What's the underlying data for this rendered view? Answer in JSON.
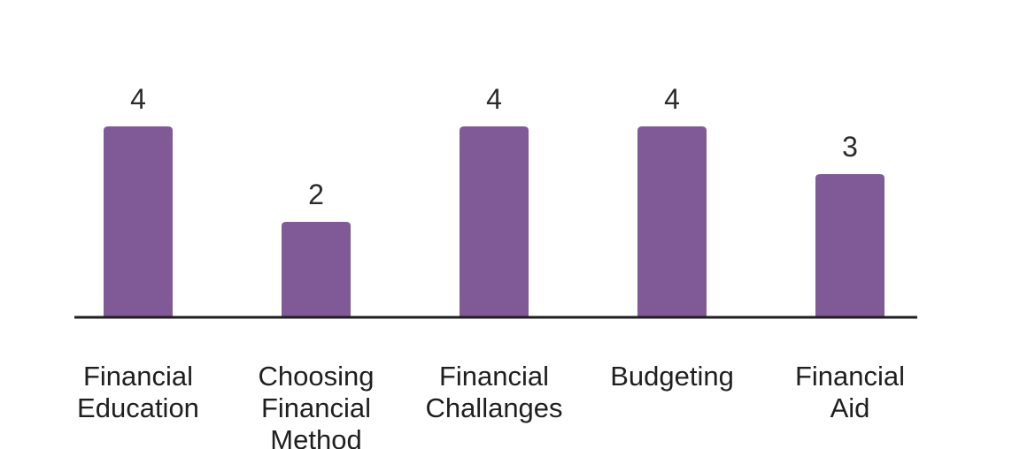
{
  "chart_data": {
    "type": "bar",
    "categories": [
      [
        "Financial",
        "Education"
      ],
      [
        "Choosing",
        "Financial",
        "Method"
      ],
      [
        "Financial",
        "Challanges"
      ],
      [
        "Budgeting"
      ],
      [
        "Financial",
        "Aid"
      ]
    ],
    "values": [
      4,
      2,
      4,
      4,
      3
    ],
    "ylim": [
      0,
      4
    ],
    "grid": false,
    "bar_color": "#7f5a96",
    "baseline_color": "#1f1f1f",
    "show_value_labels": true
  }
}
